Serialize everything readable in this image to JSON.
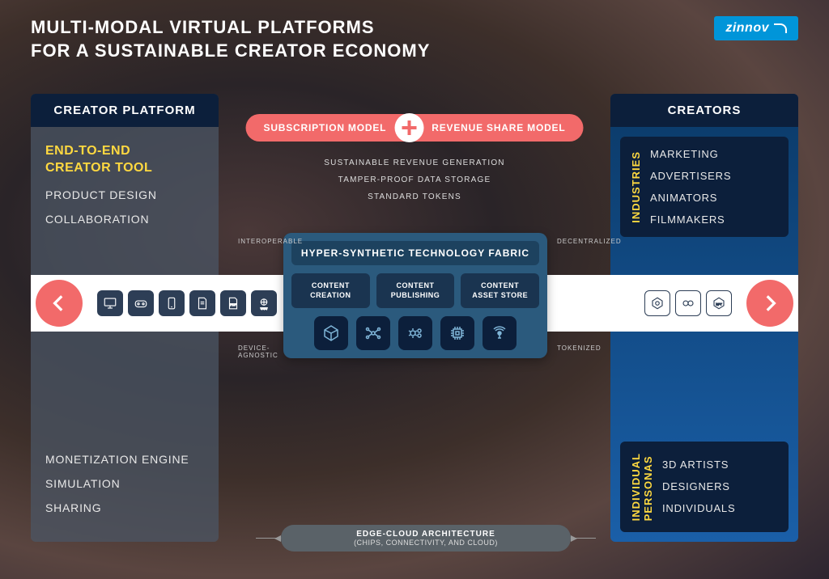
{
  "title": "MULTI-MODAL VIRTUAL PLATFORMS\nFOR A SUSTAINABLE CREATOR ECONOMY",
  "logo": "zinnov",
  "colors": {
    "accent_pink": "#f26a6a",
    "accent_yellow": "#ffd940",
    "deep_navy": "#0c1f3b",
    "panel_gray": "rgba(75,85,100,0.75)",
    "panel_blue_grad_top": "#0b3a68",
    "panel_blue_grad_bottom": "#1a5fa8",
    "fabric_bg": "#2b5a7d",
    "fabric_card": "#1a3450",
    "band_white": "#ffffff",
    "footer_gray": "#5a6268",
    "logo_blue": "#0095d9"
  },
  "left_panel": {
    "header": "CREATOR PLATFORM",
    "section_title": "END-TO-END\nCREATOR TOOL",
    "top_items": [
      "PRODUCT DESIGN",
      "COLLABORATION"
    ],
    "bottom_items": [
      "MONETIZATION ENGINE",
      "SIMULATION",
      "SHARING"
    ]
  },
  "right_panel": {
    "header": "CREATORS",
    "industries": {
      "label": "INDUSTRIES",
      "items": [
        "MARKETING",
        "ADVERTISERS",
        "ANIMATORS",
        "FILMMAKERS"
      ]
    },
    "personas": {
      "label": "INDIVIDUAL\nPERSONAS",
      "items": [
        "3D ARTISTS",
        "DESIGNERS",
        "INDIVIDUALS"
      ]
    }
  },
  "center": {
    "pill_left": "SUBSCRIPTION MODEL",
    "pill_right": "REVENUE SHARE MODEL",
    "features": [
      "SUSTAINABLE REVENUE GENERATION",
      "TAMPER-PROOF DATA STORAGE",
      "STANDARD TOKENS"
    ]
  },
  "fabric": {
    "title": "HYPER-SYNTHETIC TECHNOLOGY FABRIC",
    "cards": [
      "CONTENT\nCREATION",
      "CONTENT\nPUBLISHING",
      "CONTENT\nASSET STORE"
    ],
    "bottom_icon_count": 5,
    "corner_labels": {
      "tl": "INTEROPERABLE",
      "tr": "DECENTRALIZED",
      "bl": "DEVICE-\nAGNOSTIC",
      "br": "TOKENIZED"
    }
  },
  "band": {
    "left_icon_count": 6,
    "right_icon_count": 3
  },
  "footer": {
    "line1": "EDGE-CLOUD ARCHITECTURE",
    "line2": "(CHIPS, CONNECTIVITY, AND CLOUD)"
  }
}
